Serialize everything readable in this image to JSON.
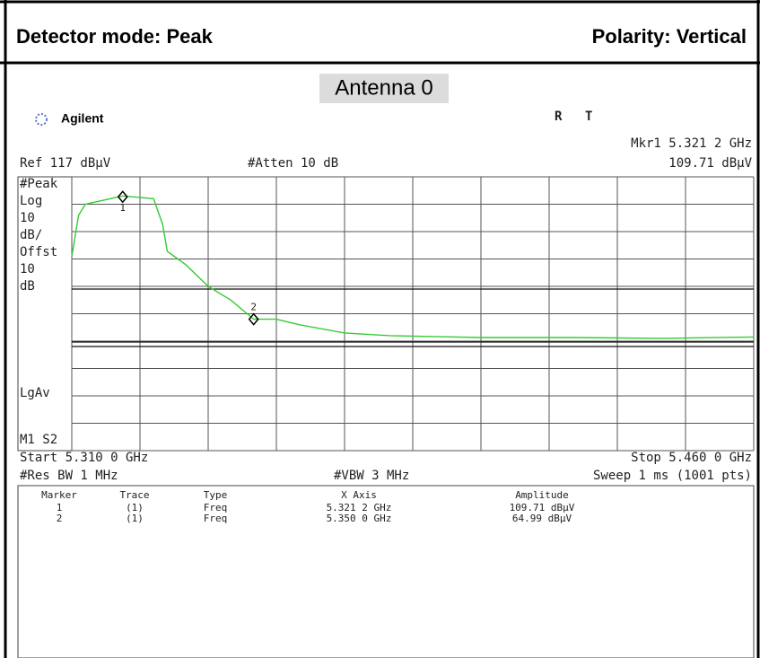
{
  "header": {
    "detector": "Detector mode: Peak",
    "polarity": "Polarity: Vertical"
  },
  "antenna": "Antenna  0",
  "screen": {
    "brand": "Agilent",
    "status": [
      "R",
      "T"
    ],
    "mkr_readout": "Mkr1  5.321 2 GHz",
    "mkr_amp": "109.71 dBµV",
    "ref": "Ref 117 dBµV",
    "atten": "#Atten 10 dB",
    "left_labels": [
      "#Peak",
      "Log",
      "10",
      "dB/",
      "Offst",
      "10",
      "dB"
    ],
    "lgav": "LgAv",
    "m1s2": "M1  S2",
    "start": "Start 5.310 0 GHz",
    "stop": "Stop 5.460 0 GHz",
    "rbw": "#Res BW 1 MHz",
    "vbw": "#VBW 3 MHz",
    "sweep": "Sweep 1 ms (1001 pts)"
  },
  "chart_data": {
    "type": "line",
    "x": [
      5.31,
      5.3115,
      5.313,
      5.3212,
      5.325,
      5.328,
      5.33,
      5.331,
      5.335,
      5.34,
      5.345,
      5.35,
      5.355,
      5.36,
      5.37,
      5.38,
      5.4,
      5.42,
      5.44,
      5.46
    ],
    "series": [
      {
        "color": "#33cc33",
        "values": [
          88,
          103,
          107,
          110,
          109.5,
          109,
          99.6,
          89.8,
          85,
          77,
          72,
          65,
          65,
          63,
          60,
          59,
          58.3,
          58.3,
          58,
          58.5
        ]
      }
    ],
    "xlim": [
      5.31,
      5.46
    ],
    "ylim": [
      17,
      117
    ],
    "xticks": [
      5.31,
      5.325,
      5.34,
      5.355,
      5.37,
      5.385,
      5.4,
      5.415,
      5.43,
      5.445,
      5.46
    ],
    "yticks": [
      17,
      27,
      37,
      47,
      57,
      67,
      77,
      87,
      97,
      107,
      117
    ],
    "grid": true,
    "markers": {
      "labels": [
        "1",
        "2"
      ],
      "x": [
        5.3212,
        5.35
      ],
      "values": [
        109.71,
        64.99
      ]
    }
  },
  "marker_table": {
    "columns": [
      "Marker",
      "Trace",
      "Type",
      "X Axis",
      "Amplitude"
    ],
    "rows": [
      [
        "1",
        "(1)",
        "Freq",
        "5.321 2 GHz",
        "109.71 dBµV"
      ],
      [
        "2",
        "(1)",
        "Freq",
        "5.350 0 GHz",
        "64.99 dBµV"
      ]
    ]
  }
}
